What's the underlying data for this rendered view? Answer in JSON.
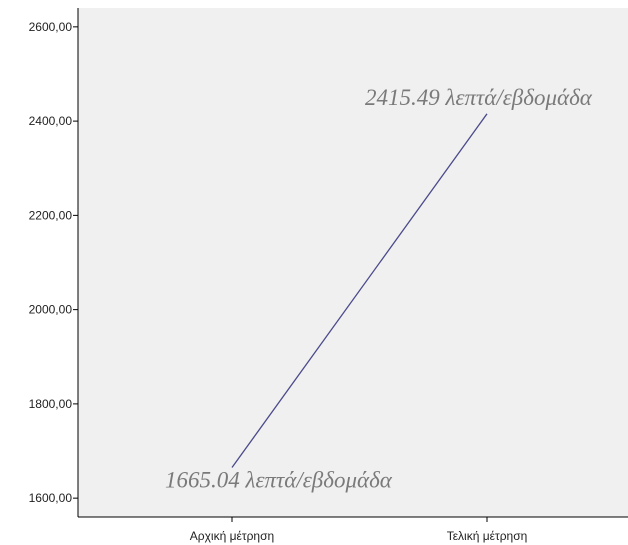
{
  "chart_data": {
    "type": "line",
    "title": "",
    "xlabel": "",
    "ylabel": "",
    "categories": [
      "Αρχική μέτρηση",
      "Τελική μέτρηση"
    ],
    "series": [
      {
        "values": [
          1665.04,
          2415.49
        ]
      }
    ],
    "data_labels": [
      "1665.04 λεπτά/εβδομάδα",
      "2415.49 λεπτά/εβδομάδα"
    ],
    "y_ticks": [
      1600,
      1800,
      2000,
      2200,
      2400,
      2600
    ],
    "y_tick_labels": [
      "1600,00",
      "1800,00",
      "2000,00",
      "2200,00",
      "2400,00",
      "2600,00"
    ],
    "ylim": [
      1560,
      2640
    ],
    "grid": false,
    "legend": "none",
    "colors": {
      "plot_background": "#f0f0f0",
      "line": "#4a4a8c",
      "axis": "#000000",
      "data_label": "#7a7a7a"
    }
  }
}
